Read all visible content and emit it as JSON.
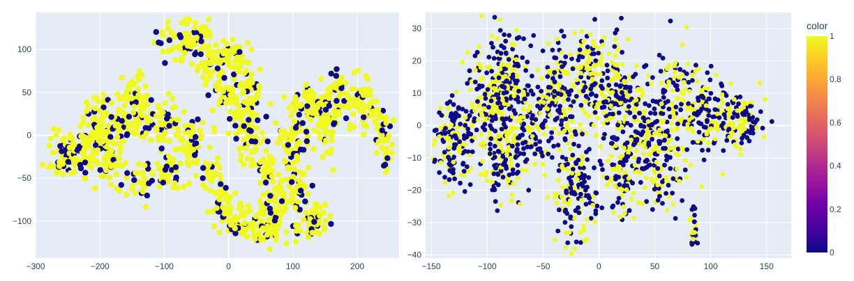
{
  "chart_data": [
    {
      "type": "scatter",
      "title": "",
      "xlabel": "",
      "ylabel": "",
      "xlim": [
        -300,
        265
      ],
      "ylim": [
        -143,
        143
      ],
      "xticks": [
        -300,
        -200,
        -100,
        0,
        100,
        200
      ],
      "yticks": [
        -100,
        -50,
        0,
        50,
        100
      ],
      "grid": true,
      "color_range": [
        0,
        1
      ],
      "clusters": [
        {
          "x": -240,
          "y": -20,
          "sx": 20,
          "sy": 14,
          "n": 130
        },
        {
          "x": -205,
          "y": 15,
          "sx": 12,
          "sy": 18,
          "n": 60
        },
        {
          "x": -165,
          "y": 15,
          "sx": 18,
          "sy": 15,
          "n": 80
        },
        {
          "x": -140,
          "y": 45,
          "sx": 12,
          "sy": 14,
          "n": 45
        },
        {
          "x": -185,
          "y": -30,
          "sx": 12,
          "sy": 14,
          "n": 50
        },
        {
          "x": -135,
          "y": -50,
          "sx": 10,
          "sy": 10,
          "n": 35
        },
        {
          "x": -95,
          "y": -45,
          "sx": 10,
          "sy": 10,
          "n": 35
        },
        {
          "x": -95,
          "y": 10,
          "sx": 12,
          "sy": 18,
          "n": 50
        },
        {
          "x": -60,
          "y": -10,
          "sx": 12,
          "sy": 20,
          "n": 55
        },
        {
          "x": -30,
          "y": -45,
          "sx": 8,
          "sy": 10,
          "n": 30
        },
        {
          "x": -75,
          "y": 105,
          "sx": 20,
          "sy": 12,
          "n": 60
        },
        {
          "x": -45,
          "y": 115,
          "sx": 12,
          "sy": 8,
          "n": 35
        },
        {
          "x": -20,
          "y": 85,
          "sx": 14,
          "sy": 10,
          "n": 40
        },
        {
          "x": 12,
          "y": 95,
          "sx": 12,
          "sy": 10,
          "n": 40
        },
        {
          "x": -5,
          "y": 55,
          "sx": 10,
          "sy": 14,
          "n": 40
        },
        {
          "x": 30,
          "y": 50,
          "sx": 12,
          "sy": 14,
          "n": 40
        },
        {
          "x": 20,
          "y": 20,
          "sx": 10,
          "sy": 12,
          "n": 35
        },
        {
          "x": 35,
          "y": -10,
          "sx": 10,
          "sy": 14,
          "n": 40
        },
        {
          "x": 60,
          "y": -40,
          "sx": 8,
          "sy": 12,
          "n": 30
        },
        {
          "x": -10,
          "y": -80,
          "sx": 10,
          "sy": 12,
          "n": 40
        },
        {
          "x": 20,
          "y": -100,
          "sx": 18,
          "sy": 10,
          "n": 60
        },
        {
          "x": 65,
          "y": -110,
          "sx": 12,
          "sy": 10,
          "n": 45
        },
        {
          "x": 75,
          "y": -80,
          "sx": 12,
          "sy": 12,
          "n": 40
        },
        {
          "x": 130,
          "y": -100,
          "sx": 12,
          "sy": 12,
          "n": 55
        },
        {
          "x": 110,
          "y": -60,
          "sx": 10,
          "sy": 14,
          "n": 40
        },
        {
          "x": 95,
          "y": -20,
          "sx": 10,
          "sy": 18,
          "n": 50
        },
        {
          "x": 110,
          "y": 20,
          "sx": 12,
          "sy": 20,
          "n": 50
        },
        {
          "x": 130,
          "y": 40,
          "sx": 12,
          "sy": 8,
          "n": 35
        },
        {
          "x": 150,
          "y": 10,
          "sx": 10,
          "sy": 18,
          "n": 45
        },
        {
          "x": 165,
          "y": 45,
          "sx": 12,
          "sy": 16,
          "n": 50
        },
        {
          "x": 195,
          "y": 50,
          "sx": 12,
          "sy": 12,
          "n": 40
        },
        {
          "x": 220,
          "y": 25,
          "sx": 12,
          "sy": 12,
          "n": 40
        },
        {
          "x": 245,
          "y": 0,
          "sx": 8,
          "sy": 16,
          "n": 35
        }
      ]
    },
    {
      "type": "scatter",
      "title": "",
      "xlabel": "",
      "ylabel": "",
      "xlim": [
        -155,
        172
      ],
      "ylim": [
        -41,
        35
      ],
      "xticks": [
        -150,
        -100,
        -50,
        0,
        50,
        100,
        150
      ],
      "yticks": [
        -40,
        -30,
        -20,
        -10,
        0,
        10,
        20,
        30
      ],
      "grid": true,
      "color_range": [
        0,
        1
      ],
      "clusters": [
        {
          "x": -130,
          "y": -5,
          "sx": 9,
          "sy": 7,
          "n": 150
        },
        {
          "x": -100,
          "y": 8,
          "sx": 10,
          "sy": 9,
          "n": 150
        },
        {
          "x": -80,
          "y": 15,
          "sx": 8,
          "sy": 8,
          "n": 140
        },
        {
          "x": -85,
          "y": -12,
          "sx": 8,
          "sy": 6,
          "n": 110
        },
        {
          "x": -60,
          "y": 0,
          "sx": 10,
          "sy": 8,
          "n": 110
        },
        {
          "x": -35,
          "y": 10,
          "sx": 10,
          "sy": 9,
          "n": 140
        },
        {
          "x": -20,
          "y": -20,
          "sx": 10,
          "sy": 9,
          "n": 150
        },
        {
          "x": -10,
          "y": 15,
          "sx": 8,
          "sy": 8,
          "n": 110
        },
        {
          "x": 15,
          "y": 10,
          "sx": 10,
          "sy": 9,
          "n": 130
        },
        {
          "x": 20,
          "y": -15,
          "sx": 8,
          "sy": 7,
          "n": 90
        },
        {
          "x": 35,
          "y": 0,
          "sx": 10,
          "sy": 9,
          "n": 120
        },
        {
          "x": 55,
          "y": -10,
          "sx": 10,
          "sy": 8,
          "n": 110
        },
        {
          "x": 70,
          "y": 10,
          "sx": 10,
          "sy": 9,
          "n": 110
        },
        {
          "x": 95,
          "y": 3,
          "sx": 10,
          "sy": 7,
          "n": 100
        },
        {
          "x": 125,
          "y": 2,
          "sx": 12,
          "sy": 4,
          "n": 130
        },
        {
          "x": 85,
          "y": -32,
          "sx": 2,
          "sy": 3,
          "n": 25
        }
      ]
    }
  ],
  "colorbar": {
    "title": "color",
    "ticks": [
      "0",
      "0.2",
      "0.4",
      "0.6",
      "0.8",
      "1"
    ],
    "colors": [
      "#0d0887",
      "#46039f",
      "#7201a8",
      "#9c179e",
      "#bd3786",
      "#d8576b",
      "#ed7953",
      "#fb9f3a",
      "#fdca26",
      "#f0f921"
    ]
  },
  "style": {
    "plot_bg": "#e5ecf6",
    "grid_color": "#ffffff",
    "marker_low": "#0d0887",
    "marker_high": "#f0f921"
  }
}
